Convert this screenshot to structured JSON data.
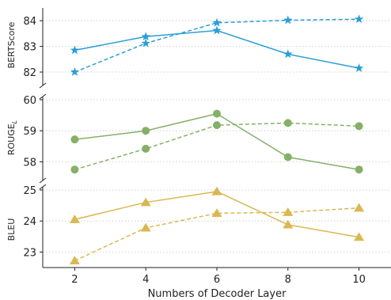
{
  "chart_data": [
    {
      "type": "line",
      "ylabel": "BERTScore",
      "x": [
        2,
        4,
        6,
        8,
        10
      ],
      "ylim": [
        81.6,
        84.5
      ],
      "yticks": [
        82,
        83,
        84
      ],
      "grid": true,
      "marker": "star",
      "color": "#2b9fd6",
      "series": [
        {
          "style": "solid",
          "values": [
            82.85,
            83.38,
            83.62,
            82.7,
            82.15
          ]
        },
        {
          "style": "dashed",
          "values": [
            82.0,
            83.12,
            83.92,
            84.02,
            84.06
          ]
        }
      ]
    },
    {
      "type": "line",
      "ylabel": "ROUGE",
      "ylabel_subscript": "L",
      "x": [
        2,
        4,
        6,
        8,
        10
      ],
      "ylim": [
        57.5,
        60.0
      ],
      "yticks": [
        58,
        59,
        60
      ],
      "grid": true,
      "marker": "circle",
      "color": "#85b068",
      "series": [
        {
          "style": "solid",
          "values": [
            58.72,
            59.0,
            59.55,
            58.15,
            57.75
          ]
        },
        {
          "style": "dashed",
          "values": [
            57.75,
            58.42,
            59.18,
            59.25,
            59.15
          ]
        }
      ]
    },
    {
      "type": "line",
      "ylabel": "BLEU",
      "x": [
        2,
        4,
        6,
        8,
        10
      ],
      "xlabel": "Numbers of Decoder Layer",
      "xticks": [
        2,
        4,
        6,
        8,
        10
      ],
      "ylim": [
        22.5,
        25.0
      ],
      "yticks": [
        23,
        24,
        25
      ],
      "grid": true,
      "marker": "triangle",
      "color": "#d9b852",
      "series": [
        {
          "style": "solid",
          "values": [
            24.05,
            24.6,
            24.95,
            23.88,
            23.48
          ]
        },
        {
          "style": "dashed",
          "values": [
            22.72,
            23.78,
            24.25,
            24.28,
            24.42
          ]
        }
      ]
    }
  ]
}
